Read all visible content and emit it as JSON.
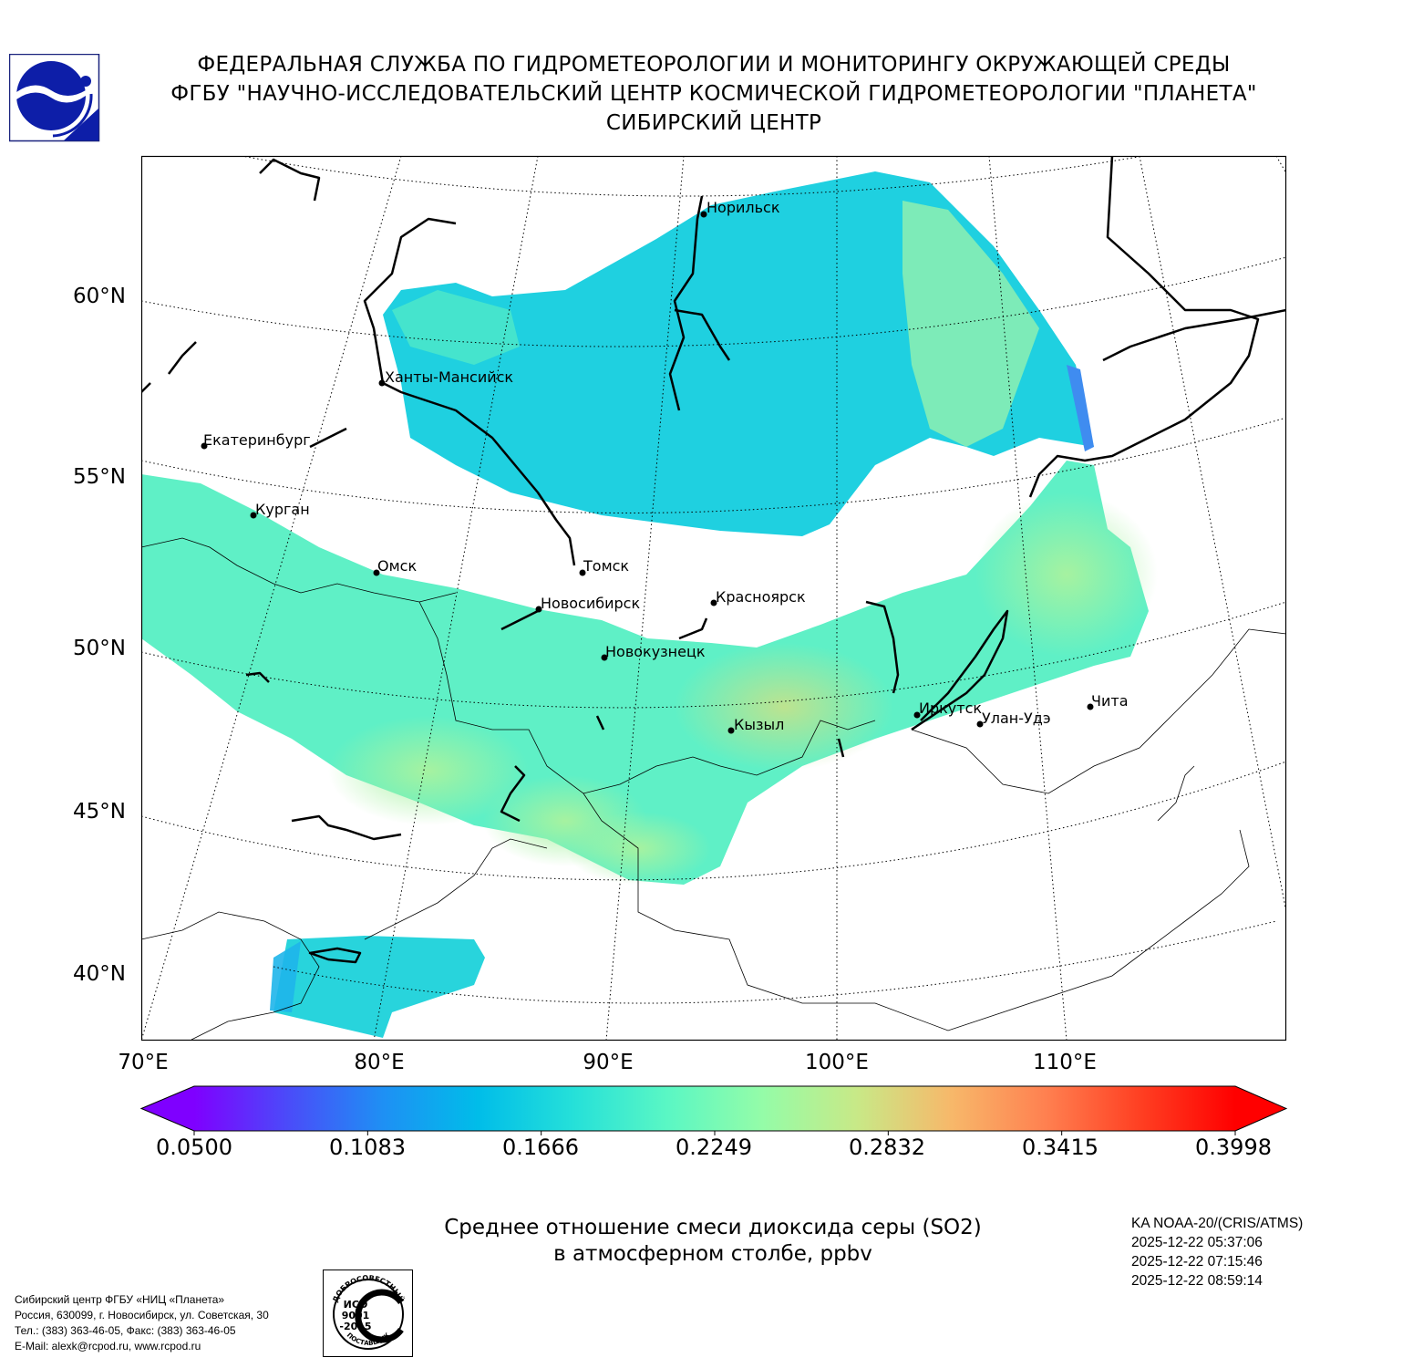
{
  "header": {
    "line1": "ФЕДЕРАЛЬНАЯ СЛУЖБА ПО ГИДРОМЕТЕОРОЛОГИИ И МОНИТОРИНГУ ОКРУЖАЮЩЕЙ СРЕДЫ",
    "line2": "ФГБУ \"НАУЧНО-ИССЛЕДОВАТЕЛЬСКИЙ ЦЕНТР КОСМИЧЕСКОЙ ГИДРОМЕТЕОРОЛОГИИ \"ПЛАНЕТА\"",
    "line3": "СИБИРСКИЙ ЦЕНТР"
  },
  "map": {
    "lat_labels": [
      "60°N",
      "55°N",
      "50°N",
      "45°N",
      "40°N"
    ],
    "lon_labels": [
      "70°E",
      "80°E",
      "90°E",
      "100°E",
      "110°E"
    ],
    "cities": [
      {
        "name": "Норильск"
      },
      {
        "name": "Ханты-Мансийск"
      },
      {
        "name": "Екатеринбург"
      },
      {
        "name": "Курган"
      },
      {
        "name": "Омск"
      },
      {
        "name": "Томск"
      },
      {
        "name": "Новосибирск"
      },
      {
        "name": "Красноярск"
      },
      {
        "name": "Новокузнецк"
      },
      {
        "name": "Кызыл"
      },
      {
        "name": "Иркутск"
      },
      {
        "name": "Улан-Удэ"
      },
      {
        "name": "Чита"
      }
    ]
  },
  "colorbar": {
    "ticks": [
      "0.0500",
      "0.1083",
      "0.1666",
      "0.2249",
      "0.2832",
      "0.3415",
      "0.3998"
    ],
    "min": 0.05,
    "max": 0.3998,
    "colors": [
      "#7f00ff",
      "#4a4cf9",
      "#1e90f4",
      "#00bde9",
      "#25e0d9",
      "#5af7c4",
      "#94fca8",
      "#c8e987",
      "#f7b86a",
      "#ff8050",
      "#ff3f22",
      "#ff0000"
    ]
  },
  "caption": {
    "line1": "Среднее отношение смеси диоксида серы (SO2)",
    "line2": "в атмосферном столбе, ppbv"
  },
  "satellite": {
    "name": "KA NOAA-20/(CRIS/ATMS)",
    "times": [
      "2025-12-22 05:37:06",
      "2025-12-22 07:15:46",
      "2025-12-22 08:59:14"
    ]
  },
  "footer": {
    "contacts": [
      "Сибирский центр ФГБУ «НИЦ «Планета»",
      "Россия, 630099, г. Новосибирск, ул. Советская, 30",
      "Тел.: (383) 363-46-05, Факс: (383) 363-46-05",
      "E-Mail: alexk@rcpod.ru, www.rcpod.ru"
    ],
    "iso": {
      "top_text": "ДОБРОСОВЕСТНЫЙ",
      "mid1": "ИСО",
      "mid2": "9001",
      "mid3": "-2015",
      "bottom_text": "ПОСТАВЩИК"
    }
  }
}
